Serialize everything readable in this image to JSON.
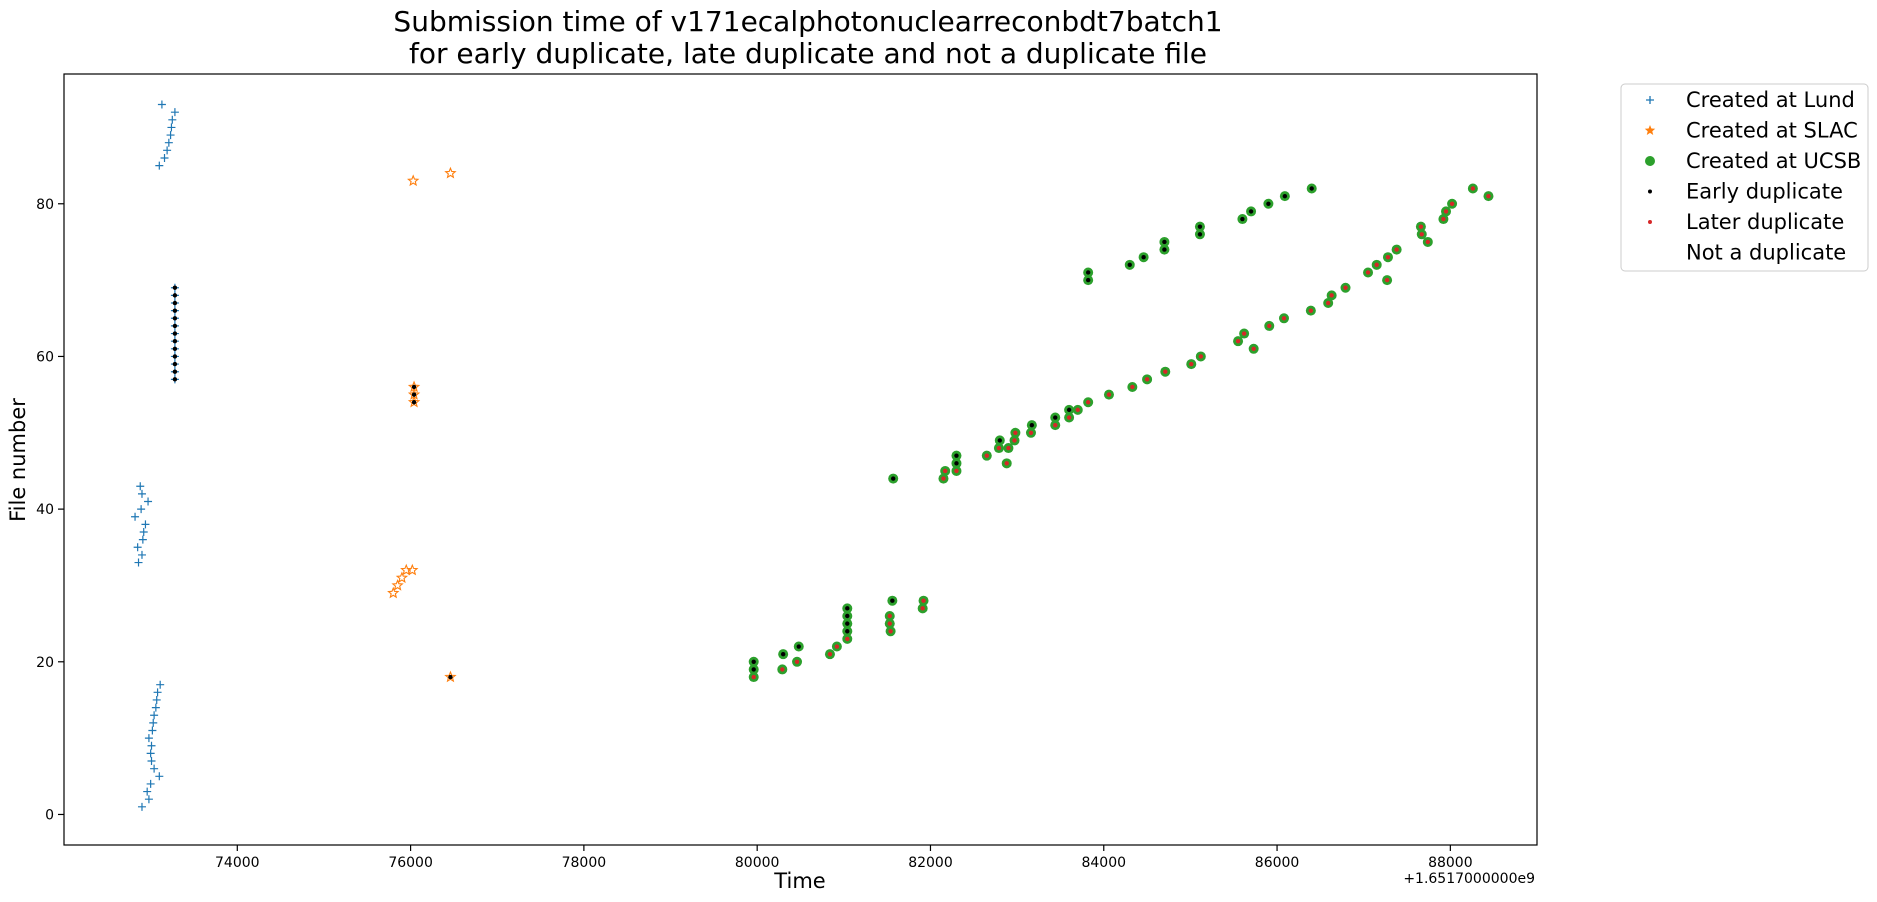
{
  "chart_data": {
    "type": "scatter",
    "title_lines": [
      "Submission time of v171ecalphotonuclearreconbdt7batch1",
      "for early duplicate, late duplicate and not a duplicate file"
    ],
    "xlabel": "Time",
    "ylabel": "File number",
    "x_offset_label": "+1.6517000000e9",
    "xlim": [
      72000,
      89000
    ],
    "ylim": [
      -4,
      97
    ],
    "x_ticks": [
      74000,
      76000,
      78000,
      80000,
      82000,
      84000,
      86000,
      88000
    ],
    "x_tick_labels": [
      "74000",
      "76000",
      "78000",
      "80000",
      "82000",
      "84000",
      "86000",
      "88000"
    ],
    "y_ticks": [
      0,
      20,
      40,
      60,
      80
    ],
    "y_tick_labels": [
      "0",
      "20",
      "40",
      "60",
      "80"
    ],
    "grid": false,
    "legend_position": "outside-right-top",
    "legend": [
      {
        "label": "Created at Lund",
        "marker": "plus",
        "color": "#1f77b4"
      },
      {
        "label": "Created at SLAC",
        "marker": "star",
        "color": "#ff7f0e"
      },
      {
        "label": "Created at UCSB",
        "marker": "circle",
        "color": "#2ca02c"
      },
      {
        "label": "Early duplicate",
        "marker": "dot",
        "color": "#000000"
      },
      {
        "label": "Later duplicate",
        "marker": "dot",
        "color": "#d62728"
      },
      {
        "label": "Not a duplicate",
        "marker": "none",
        "color": "#ffffff"
      }
    ],
    "series": [
      {
        "name": "Lund - Not a duplicate",
        "site": "Lund",
        "dup": "none",
        "points": [
          [
            72900,
            1
          ],
          [
            72980,
            2
          ],
          [
            72960,
            3
          ],
          [
            73000,
            4
          ],
          [
            73100,
            5
          ],
          [
            73040,
            6
          ],
          [
            73010,
            7
          ],
          [
            73000,
            8
          ],
          [
            73010,
            9
          ],
          [
            72980,
            10
          ],
          [
            73020,
            11
          ],
          [
            73030,
            12
          ],
          [
            73040,
            13
          ],
          [
            73060,
            14
          ],
          [
            73070,
            15
          ],
          [
            73080,
            16
          ],
          [
            73110,
            17
          ],
          [
            72860,
            33
          ],
          [
            72900,
            34
          ],
          [
            72850,
            35
          ],
          [
            72910,
            36
          ],
          [
            72920,
            37
          ],
          [
            72940,
            38
          ],
          [
            72820,
            39
          ],
          [
            72890,
            40
          ],
          [
            72970,
            41
          ],
          [
            72900,
            42
          ],
          [
            72880,
            43
          ],
          [
            73100,
            85
          ],
          [
            73160,
            86
          ],
          [
            73190,
            87
          ],
          [
            73210,
            88
          ],
          [
            73230,
            89
          ],
          [
            73240,
            90
          ],
          [
            73250,
            91
          ],
          [
            73280,
            92
          ],
          [
            73130,
            93
          ]
        ]
      },
      {
        "name": "Lund - Early duplicate",
        "site": "Lund",
        "dup": "early",
        "points": [
          [
            73280,
            57
          ],
          [
            73280,
            58
          ],
          [
            73280,
            59
          ],
          [
            73280,
            60
          ],
          [
            73280,
            61
          ],
          [
            73280,
            62
          ],
          [
            73280,
            63
          ],
          [
            73280,
            64
          ],
          [
            73280,
            65
          ],
          [
            73280,
            66
          ],
          [
            73280,
            67
          ],
          [
            73280,
            68
          ],
          [
            73280,
            69
          ]
        ]
      },
      {
        "name": "SLAC - Not a duplicate",
        "site": "SLAC",
        "dup": "none",
        "points": [
          [
            75800,
            29
          ],
          [
            75850,
            30
          ],
          [
            75900,
            31
          ],
          [
            75950,
            32
          ],
          [
            76020,
            32
          ],
          [
            76030,
            83
          ],
          [
            76460,
            84
          ]
        ]
      },
      {
        "name": "SLAC - Early duplicate",
        "site": "SLAC",
        "dup": "early",
        "points": [
          [
            76040,
            54
          ],
          [
            76040,
            55
          ],
          [
            76040,
            56
          ],
          [
            76460,
            18
          ]
        ]
      },
      {
        "name": "UCSB - Early duplicate",
        "site": "UCSB",
        "dup": "early",
        "points": [
          [
            79960,
            19
          ],
          [
            79960,
            20
          ],
          [
            80300,
            21
          ],
          [
            80480,
            22
          ],
          [
            81040,
            24
          ],
          [
            81040,
            25
          ],
          [
            81040,
            26
          ],
          [
            81040,
            27
          ],
          [
            81560,
            28
          ],
          [
            81570,
            44
          ],
          [
            82300,
            46
          ],
          [
            82300,
            47
          ],
          [
            82800,
            49
          ],
          [
            83170,
            51
          ],
          [
            83440,
            52
          ],
          [
            83600,
            53
          ],
          [
            83820,
            70
          ],
          [
            83820,
            71
          ],
          [
            84300,
            72
          ],
          [
            84460,
            73
          ],
          [
            84700,
            74
          ],
          [
            84700,
            75
          ],
          [
            85110,
            76
          ],
          [
            85110,
            77
          ],
          [
            85600,
            78
          ],
          [
            85700,
            79
          ],
          [
            85900,
            80
          ],
          [
            86090,
            81
          ],
          [
            86400,
            82
          ]
        ]
      },
      {
        "name": "UCSB - Later duplicate",
        "site": "UCSB",
        "dup": "late",
        "points": [
          [
            79960,
            18
          ],
          [
            80290,
            19
          ],
          [
            80460,
            20
          ],
          [
            80840,
            21
          ],
          [
            80920,
            22
          ],
          [
            81040,
            23
          ],
          [
            81540,
            24
          ],
          [
            81530,
            25
          ],
          [
            81530,
            26
          ],
          [
            81910,
            27
          ],
          [
            81920,
            28
          ],
          [
            82150,
            44
          ],
          [
            82170,
            45
          ],
          [
            82300,
            45
          ],
          [
            82650,
            47
          ],
          [
            82790,
            48
          ],
          [
            82900,
            48
          ],
          [
            82880,
            46
          ],
          [
            82970,
            49
          ],
          [
            82980,
            50
          ],
          [
            83160,
            50
          ],
          [
            83440,
            51
          ],
          [
            83600,
            52
          ],
          [
            83700,
            53
          ],
          [
            83820,
            54
          ],
          [
            84060,
            55
          ],
          [
            84330,
            56
          ],
          [
            84500,
            57
          ],
          [
            84710,
            58
          ],
          [
            85010,
            59
          ],
          [
            85120,
            60
          ],
          [
            85550,
            62
          ],
          [
            85620,
            63
          ],
          [
            85730,
            61
          ],
          [
            85910,
            64
          ],
          [
            86080,
            65
          ],
          [
            86390,
            66
          ],
          [
            86590,
            67
          ],
          [
            86630,
            68
          ],
          [
            86790,
            69
          ],
          [
            87050,
            71
          ],
          [
            87150,
            72
          ],
          [
            87280,
            73
          ],
          [
            87380,
            74
          ],
          [
            87270,
            70
          ],
          [
            87660,
            77
          ],
          [
            87670,
            76
          ],
          [
            87740,
            75
          ],
          [
            87920,
            78
          ],
          [
            87950,
            79
          ],
          [
            88020,
            80
          ],
          [
            88260,
            82
          ],
          [
            88440,
            81
          ]
        ]
      }
    ]
  }
}
